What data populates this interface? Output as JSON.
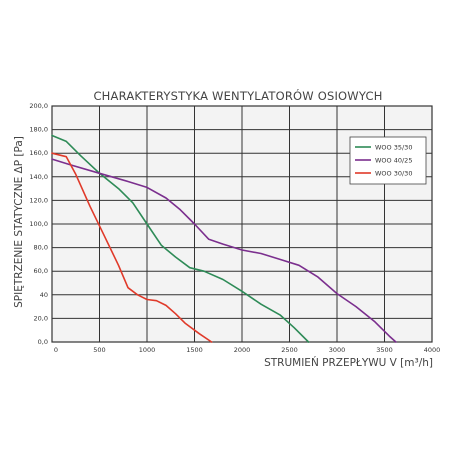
{
  "chart_data": {
    "type": "line",
    "title": "CHARAKTERYSTYKA WENTYLATORÓW OSIOWYCH",
    "xlabel": "STRUMIEŃ PRZEPŁYWU V [m³/h]",
    "ylabel": "SPIĘTRZENIE STATYCZNE ΔP [Pa]",
    "xlim": [
      0,
      4000
    ],
    "ylim": [
      0,
      200
    ],
    "x_ticks": [
      "0",
      "500",
      "1000",
      "1500",
      "2000",
      "2500",
      "3000",
      "3500",
      "4000"
    ],
    "x_tick_values": [
      0,
      500,
      1000,
      1500,
      2000,
      2500,
      3000,
      3500,
      4000
    ],
    "y_ticks": [
      "0,0",
      "20,0",
      "40",
      "60,0",
      "80,0",
      "100,0",
      "120,0",
      "140,0",
      "160,0",
      "180,0",
      "200,0"
    ],
    "y_tick_values": [
      0,
      20,
      40,
      60,
      80,
      100,
      120,
      140,
      160,
      180,
      200
    ],
    "grid": true,
    "legend_position": "top-right",
    "series": [
      {
        "name": "WOO 35/30",
        "color": "#2e8b57",
        "points": [
          [
            0,
            175
          ],
          [
            150,
            170
          ],
          [
            300,
            158
          ],
          [
            500,
            143
          ],
          [
            700,
            130
          ],
          [
            850,
            118
          ],
          [
            1000,
            100
          ],
          [
            1150,
            82
          ],
          [
            1300,
            72
          ],
          [
            1450,
            63
          ],
          [
            1600,
            60
          ],
          [
            1800,
            53
          ],
          [
            2000,
            43
          ],
          [
            2200,
            32
          ],
          [
            2400,
            23
          ],
          [
            2550,
            12
          ],
          [
            2700,
            0
          ]
        ]
      },
      {
        "name": "WOO 40/25",
        "color": "#7b2f8e",
        "points": [
          [
            0,
            155
          ],
          [
            200,
            150
          ],
          [
            500,
            143
          ],
          [
            800,
            136
          ],
          [
            1000,
            131
          ],
          [
            1200,
            122
          ],
          [
            1350,
            112
          ],
          [
            1500,
            100
          ],
          [
            1650,
            87
          ],
          [
            1800,
            83
          ],
          [
            2000,
            78
          ],
          [
            2200,
            75
          ],
          [
            2400,
            70
          ],
          [
            2600,
            65
          ],
          [
            2800,
            55
          ],
          [
            3000,
            41
          ],
          [
            3200,
            30
          ],
          [
            3400,
            17
          ],
          [
            3550,
            5
          ],
          [
            3620,
            0
          ]
        ]
      },
      {
        "name": "WOO 30/30",
        "color": "#e03a2a",
        "points": [
          [
            0,
            160
          ],
          [
            150,
            157
          ],
          [
            250,
            142
          ],
          [
            400,
            115
          ],
          [
            550,
            90
          ],
          [
            700,
            65
          ],
          [
            800,
            46
          ],
          [
            900,
            40
          ],
          [
            1000,
            36
          ],
          [
            1100,
            35
          ],
          [
            1200,
            31
          ],
          [
            1300,
            24
          ],
          [
            1400,
            16
          ],
          [
            1550,
            7
          ],
          [
            1680,
            0
          ]
        ]
      }
    ]
  }
}
